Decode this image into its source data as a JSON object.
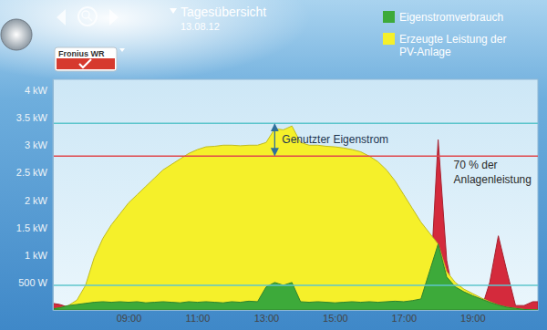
{
  "header": {
    "device": "Fronius WR"
  },
  "chart_data": {
    "type": "area",
    "title": "Tagesübersicht",
    "subtitle": "13.08.12",
    "x": [
      6.8,
      7.0,
      7.25,
      7.5,
      7.75,
      8.0,
      8.25,
      8.5,
      8.75,
      9.0,
      9.25,
      9.5,
      9.75,
      10.0,
      10.25,
      10.5,
      10.75,
      11.0,
      11.25,
      11.5,
      11.75,
      12.0,
      12.25,
      12.5,
      12.75,
      13.0,
      13.25,
      13.5,
      13.75,
      14.0,
      14.25,
      14.5,
      14.75,
      15.0,
      15.25,
      15.5,
      15.75,
      16.0,
      16.25,
      16.5,
      16.75,
      17.0,
      17.25,
      17.5,
      17.75,
      18.0,
      18.25,
      18.5,
      18.75,
      19.0,
      19.25,
      19.5,
      19.75,
      20.0,
      20.25,
      20.5,
      20.75,
      20.9
    ],
    "series": [
      {
        "name": "Eigenstromverbrauch",
        "color": "#3daa3a",
        "values": [
          0.02,
          0.04,
          0.08,
          0.1,
          0.12,
          0.14,
          0.15,
          0.14,
          0.15,
          0.14,
          0.15,
          0.13,
          0.14,
          0.15,
          0.14,
          0.13,
          0.15,
          0.14,
          0.15,
          0.14,
          0.13,
          0.15,
          0.14,
          0.16,
          0.15,
          0.42,
          0.5,
          0.45,
          0.5,
          0.15,
          0.14,
          0.15,
          0.14,
          0.13,
          0.14,
          0.15,
          0.14,
          0.15,
          0.14,
          0.15,
          0.16,
          0.15,
          0.17,
          0.2,
          0.7,
          1.2,
          0.6,
          0.42,
          0.33,
          0.26,
          0.2,
          0.14,
          0.09,
          0.05,
          0.03,
          0.01,
          0,
          0
        ]
      },
      {
        "name": "Erzeugte Leistung der PV-Anlage",
        "color": "#f5f02a",
        "values": [
          0.02,
          0.04,
          0.08,
          0.18,
          0.45,
          0.95,
          1.3,
          1.55,
          1.75,
          1.95,
          2.1,
          2.25,
          2.4,
          2.55,
          2.65,
          2.75,
          2.85,
          2.92,
          2.97,
          2.98,
          3.0,
          3.0,
          2.99,
          3.0,
          3.0,
          3.05,
          3.3,
          3.28,
          3.35,
          3.05,
          3.0,
          3.0,
          2.98,
          2.97,
          2.95,
          2.92,
          2.88,
          2.8,
          2.7,
          2.55,
          2.35,
          2.1,
          1.85,
          1.6,
          1.4,
          1.2,
          0.7,
          0.5,
          0.38,
          0.3,
          0.22,
          0.15,
          0.09,
          0.05,
          0.03,
          0.01,
          0,
          0
        ]
      },
      {
        "color": "#d42a3c",
        "values": [
          0.12,
          0.1,
          0.05,
          0,
          0,
          0,
          0,
          0,
          0,
          0,
          0,
          0,
          0,
          0,
          0,
          0,
          0,
          0,
          0,
          0,
          0,
          0,
          0,
          0,
          0,
          0,
          0,
          0,
          0,
          0,
          0,
          0,
          0,
          0,
          0,
          0,
          0,
          0,
          0,
          0,
          0,
          0,
          0,
          0,
          0.2,
          3.1,
          0.9,
          0.1,
          0,
          0,
          0,
          0.5,
          1.35,
          0.7,
          0.08,
          0.08,
          0.15,
          0.15
        ]
      }
    ],
    "xlim": [
      6.8,
      20.9
    ],
    "xticks": [
      {
        "value": 9,
        "label": "09:00"
      },
      {
        "value": 11,
        "label": "11:00"
      },
      {
        "value": 13,
        "label": "13:00"
      },
      {
        "value": 15,
        "label": "15:00"
      },
      {
        "value": 17,
        "label": "17:00"
      },
      {
        "value": 19,
        "label": "19:00"
      }
    ],
    "ylim": [
      0,
      4.2
    ],
    "yticks": [
      {
        "value": 0.5,
        "label": "500 W"
      },
      {
        "value": 1,
        "label": "1 kW"
      },
      {
        "value": 1.5,
        "label": "1.5 kW"
      },
      {
        "value": 2,
        "label": "2 kW"
      },
      {
        "value": 2.5,
        "label": "2.5 kW"
      },
      {
        "value": 3,
        "label": "3 kW"
      },
      {
        "value": 3.5,
        "label": "3.5 kW"
      },
      {
        "value": 4,
        "label": "4 kW"
      }
    ],
    "reference_lines": [
      {
        "value": 3.4,
        "color": "#5ec6cc"
      },
      {
        "value": 2.8,
        "color": "#e0474c"
      },
      {
        "value": 0.45,
        "color": "#5ec6cc"
      }
    ],
    "annotations": [
      {
        "text": "Genutzter Eigenstrom",
        "x": 13.25,
        "y": [
          2.8,
          3.4
        ]
      },
      {
        "text": "70 % der Anlagenleistung",
        "x": 18.45,
        "y": 2.58
      }
    ],
    "grid": false,
    "legend": "top-right"
  }
}
